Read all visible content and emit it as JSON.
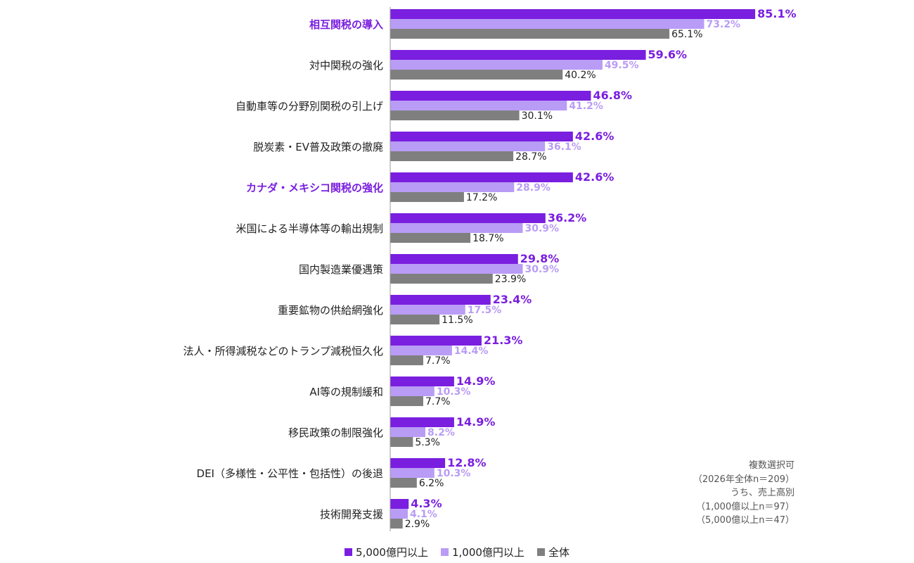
{
  "chart_data": {
    "type": "bar",
    "orientation": "horizontal",
    "categories": [
      "相互関税の導入",
      "対中関税の強化",
      "自動車等の分野別関税の引上げ",
      "脱炭素・EV普及政策の撤廃",
      "カナダ・メキシコ関税の強化",
      "米国による半導体等の輸出規制",
      "国内製造業優遇策",
      "重要鉱物の供給網強化",
      "法人・所得減税などのトランプ減税恒久化",
      "AI等の規制緩和",
      "移民政策の制限強化",
      "DEI（多様性・公平性・包括性）の後退",
      "技術開発支援"
    ],
    "highlighted_categories": [
      0,
      4
    ],
    "series": [
      {
        "name": "5,000億円以上",
        "color": "#7a1ee0",
        "label_color": "#7a1ee0",
        "values": [
          85.1,
          59.6,
          46.8,
          42.6,
          42.6,
          36.2,
          29.8,
          23.4,
          21.3,
          14.9,
          14.9,
          12.8,
          4.3
        ],
        "labels": [
          "85.1%",
          "59.6%",
          "46.8%",
          "42.6%",
          "42.6%",
          "36.2%",
          "29.8%",
          "23.4%",
          "21.3%",
          "14.9%",
          "14.9%",
          "12.8%",
          "4.3%"
        ]
      },
      {
        "name": "1,000億円以上",
        "color": "#b99cf5",
        "label_color": "#b99cf5",
        "values": [
          73.2,
          49.5,
          41.2,
          36.1,
          28.9,
          30.9,
          30.9,
          17.5,
          14.4,
          10.3,
          8.2,
          10.3,
          4.1
        ],
        "labels": [
          "73.2%",
          "49.5%",
          "41.2%",
          "36.1%",
          "28.9%",
          "30.9%",
          "30.9%",
          "17.5%",
          "14.4%",
          "10.3%",
          "8.2%",
          "10.3%",
          "4.1%"
        ]
      },
      {
        "name": "全体",
        "color": "#7f7f7f",
        "label_color": "#222222",
        "values": [
          65.1,
          40.2,
          30.1,
          28.7,
          17.2,
          18.7,
          23.9,
          11.5,
          7.7,
          7.7,
          5.3,
          6.2,
          2.9
        ],
        "labels": [
          "65.1%",
          "40.2%",
          "30.1%",
          "28.7%",
          "17.2%",
          "18.7%",
          "23.9%",
          "11.5%",
          "7.7%",
          "7.7%",
          "5.3%",
          "6.2%",
          "2.9%"
        ]
      }
    ],
    "xlim": [
      0,
      100
    ],
    "grid": false,
    "legend_position": "bottom",
    "highlight_color": "#7a1ee0"
  },
  "note": {
    "lines": [
      "複数選択可",
      "（2026年全体n＝209）",
      "うち、売上高別",
      "（1,000億以上n＝97）",
      "（5,000億以上n＝47）"
    ]
  },
  "legend": {
    "items": [
      {
        "label": "5,000億円以上",
        "color": "#7a1ee0"
      },
      {
        "label": "1,000億円以上",
        "color": "#b99cf5"
      },
      {
        "label": "全体",
        "color": "#7f7f7f"
      }
    ]
  }
}
